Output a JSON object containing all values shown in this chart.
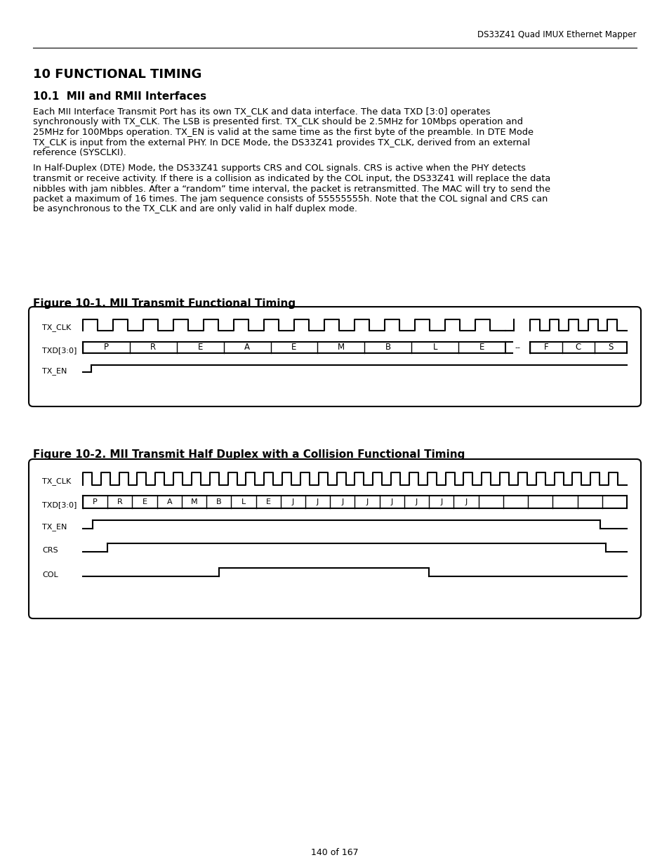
{
  "page_header": "DS33Z41 Quad IMUX Ethernet Mapper",
  "section_title": "10 FUNCTIONAL TIMING",
  "subsection_title": "10.1  MII and RMII Interfaces",
  "body1_lines": [
    "Each MII Interface Transmit Port has its own TX_CLK and data interface. The data TXD [3:0] operates",
    "synchronously with TX_CLK. The LSB is presented first. TX_CLK should be 2.5MHz for 10Mbps operation and",
    "25MHz for 100Mbps operation. TX_EN is valid at the same time as the first byte of the preamble. In DTE Mode",
    "TX_CLK is input from the external PHY. In DCE Mode, the DS33Z41 provides TX_CLK, derived from an external",
    "reference (SYSCLKI)."
  ],
  "body2_lines": [
    "In Half-Duplex (DTE) Mode, the DS33Z41 supports CRS and COL signals. CRS is active when the PHY detects",
    "transmit or receive activity. If there is a collision as indicated by the COL input, the DS33Z41 will replace the data",
    "nibbles with jam nibbles. After a “random” time interval, the packet is retransmitted. The MAC will try to send the",
    "packet a maximum of 16 times. The jam sequence consists of 55555555h. Note that the COL signal and CRS can",
    "be asynchronous to the TX_CLK and are only valid in half duplex mode."
  ],
  "fig1_title": "Figure 10-1. MII Transmit Functional Timing",
  "fig2_title": "Figure 10-2. MII Transmit Half Duplex with a Collision Functional Timing",
  "page_footer": "140 of 167",
  "fig1_txd_labels": [
    "P",
    "R",
    "E",
    "A",
    "E",
    "M",
    "B",
    "L",
    "E"
  ],
  "fig1_fcs_labels": [
    "F",
    "C",
    "S"
  ],
  "fig2_txd_labels": [
    "P",
    "R",
    "E",
    "A",
    "M",
    "B",
    "L",
    "E",
    "J",
    "J",
    "J",
    "J",
    "J",
    "J",
    "J",
    "J",
    "",
    "",
    "",
    "",
    "",
    ""
  ],
  "bg_color": "#ffffff",
  "text_color": "#000000"
}
